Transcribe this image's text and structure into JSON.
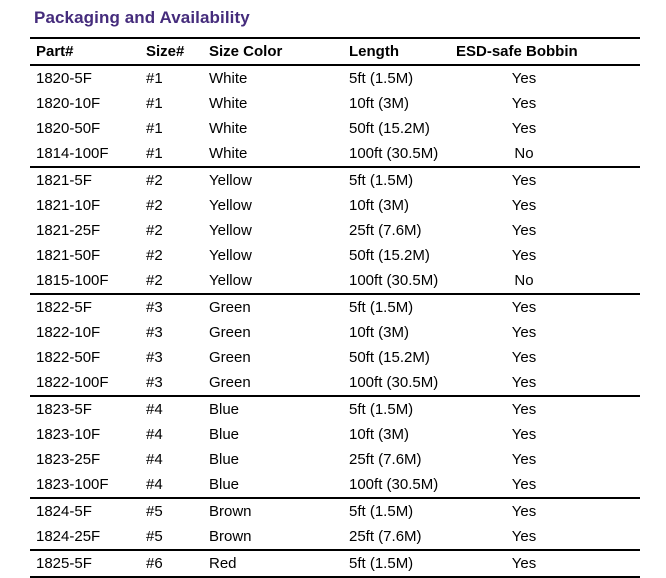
{
  "title": "Packaging and Availability",
  "colors": {
    "title_accent": "#452c7c",
    "text": "#000000",
    "rule": "#000000"
  },
  "table": {
    "columns": [
      "Part#",
      "Size#",
      "Size Color",
      "Length",
      "ESD-safe Bobbin"
    ],
    "column_keys": [
      "part",
      "size",
      "color",
      "length",
      "esd"
    ],
    "groups": [
      [
        [
          "1820-5F",
          "#1",
          "White",
          "5ft (1.5M)",
          "Yes"
        ],
        [
          "1820-10F",
          "#1",
          "White",
          "10ft (3M)",
          "Yes"
        ],
        [
          "1820-50F",
          "#1",
          "White",
          "50ft (15.2M)",
          "Yes"
        ],
        [
          "1814-100F",
          "#1",
          "White",
          "100ft (30.5M)",
          "No"
        ]
      ],
      [
        [
          "1821-5F",
          "#2",
          "Yellow",
          "5ft (1.5M)",
          "Yes"
        ],
        [
          "1821-10F",
          "#2",
          "Yellow",
          "10ft (3M)",
          "Yes"
        ],
        [
          "1821-25F",
          "#2",
          "Yellow",
          "25ft (7.6M)",
          "Yes"
        ],
        [
          "1821-50F",
          "#2",
          "Yellow",
          "50ft (15.2M)",
          "Yes"
        ],
        [
          "1815-100F",
          "#2",
          "Yellow",
          "100ft (30.5M)",
          "No"
        ]
      ],
      [
        [
          "1822-5F",
          "#3",
          "Green",
          "5ft (1.5M)",
          "Yes"
        ],
        [
          "1822-10F",
          "#3",
          "Green",
          "10ft (3M)",
          "Yes"
        ],
        [
          "1822-50F",
          "#3",
          "Green",
          "50ft (15.2M)",
          "Yes"
        ],
        [
          "1822-100F",
          "#3",
          "Green",
          "100ft (30.5M)",
          "Yes"
        ]
      ],
      [
        [
          "1823-5F",
          "#4",
          "Blue",
          "5ft (1.5M)",
          "Yes"
        ],
        [
          "1823-10F",
          "#4",
          "Blue",
          "10ft (3M)",
          "Yes"
        ],
        [
          "1823-25F",
          "#4",
          "Blue",
          "25ft (7.6M)",
          "Yes"
        ],
        [
          "1823-100F",
          "#4",
          "Blue",
          "100ft (30.5M)",
          "Yes"
        ]
      ],
      [
        [
          "1824-5F",
          "#5",
          "Brown",
          "5ft (1.5M)",
          "Yes"
        ],
        [
          "1824-25F",
          "#5",
          "Brown",
          "25ft (7.6M)",
          "Yes"
        ]
      ],
      [
        [
          "1825-5F",
          "#6",
          "Red",
          "5ft (1.5M)",
          "Yes"
        ]
      ]
    ]
  }
}
